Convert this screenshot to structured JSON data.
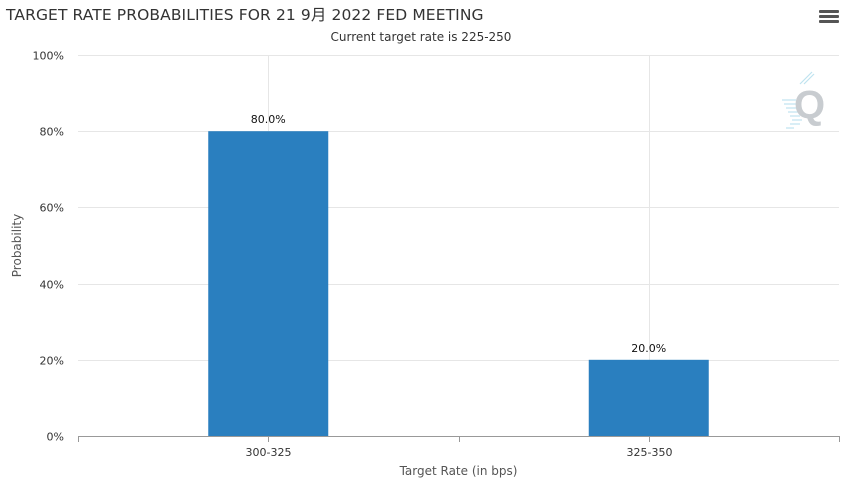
{
  "chart_data": {
    "type": "bar",
    "title": "TARGET RATE PROBABILITIES FOR 21 9月 2022 FED MEETING",
    "subtitle": "Current target rate is 225-250",
    "categories": [
      "300-325",
      "325-350"
    ],
    "series": [
      {
        "values": [
          80.0,
          20.0
        ],
        "color": "#2a7fbf"
      }
    ],
    "data_labels": [
      "80.0%",
      "20.0%"
    ],
    "xlabel": "Target Rate (in bps)",
    "ylabel": "Probability",
    "ylim": [
      0,
      100
    ],
    "y_ticks": [
      0,
      20,
      40,
      60,
      80,
      100
    ],
    "y_tick_labels": [
      "0%",
      "20%",
      "40%",
      "60%",
      "80%",
      "100%"
    ],
    "grid": true
  },
  "toolbar": {
    "menu_icon": "hamburger-menu-icon"
  },
  "watermark": {
    "icon": "quikstrike-q-logo",
    "color": "#c8ccd0"
  }
}
